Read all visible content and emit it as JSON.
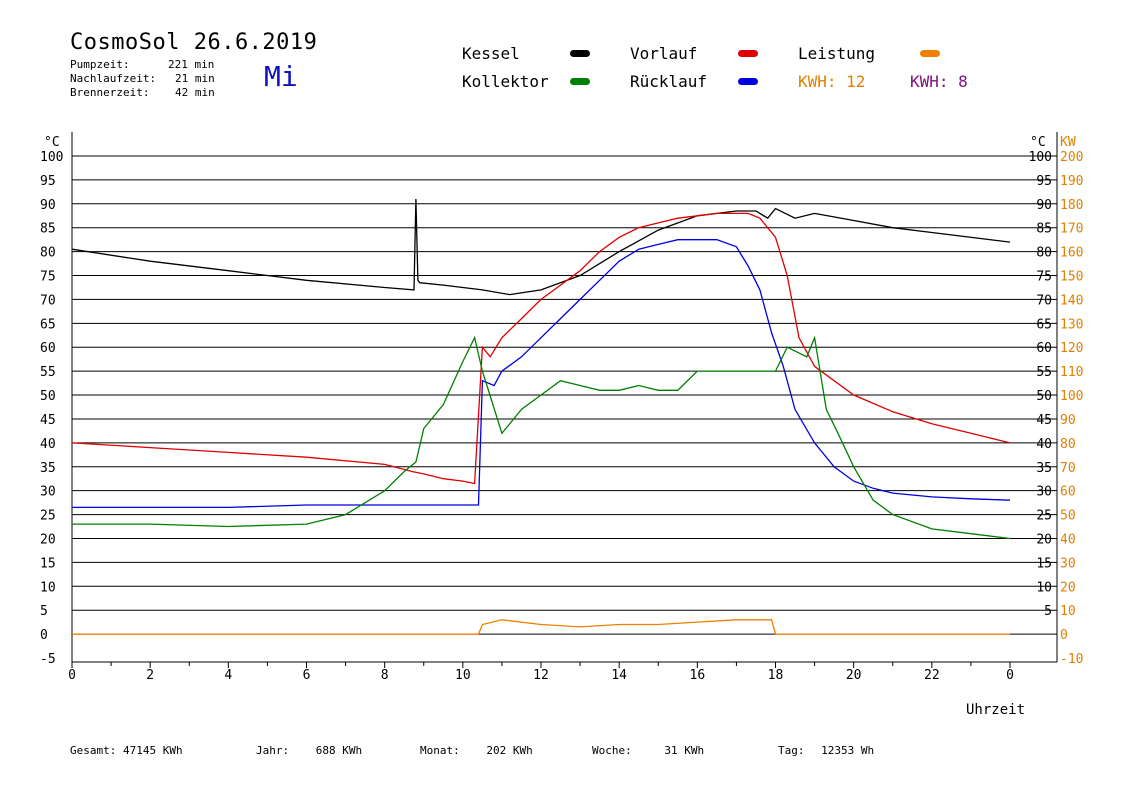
{
  "header": {
    "title": "CosmoSol 26.6.2019",
    "stats": [
      {
        "label": "Pumpzeit:",
        "value": "221 min"
      },
      {
        "label": "Nachlaufzeit:",
        "value": "21 min"
      },
      {
        "label": "Brennerzeit:",
        "value": "42 min"
      }
    ],
    "weekday": "Mi"
  },
  "legend": {
    "items": [
      {
        "label": "Kessel",
        "color": "#000000"
      },
      {
        "label": "Kollektor",
        "color": "#008000"
      },
      {
        "label": "Vorlauf",
        "color": "#e00000"
      },
      {
        "label": "Rücklauf",
        "color": "#0000e0"
      },
      {
        "label": "Leistung",
        "color": "#f08000"
      }
    ],
    "kwh": [
      {
        "label": "KWH:",
        "value": "12",
        "color": "#e08000"
      },
      {
        "label": "KWH:",
        "value": "8",
        "color": "#801080"
      }
    ]
  },
  "footer": [
    {
      "label": "Gesamt:",
      "value": "47145 KWh"
    },
    {
      "label": "Jahr:",
      "value": "688 KWh"
    },
    {
      "label": "Monat:",
      "value": "202 KWh"
    },
    {
      "label": "Woche:",
      "value": "31 KWh"
    },
    {
      "label": "Tag:",
      "value": "12353 Wh"
    }
  ],
  "chart_data": {
    "type": "line",
    "xlabel": "Uhrzeit",
    "ylabel_left": "°C",
    "ylabel_right_temp": "°C",
    "ylabel_right_power": "KW",
    "xlim": [
      0,
      24
    ],
    "ylim": [
      -5,
      100
    ],
    "y2lim": [
      -10,
      200
    ],
    "x_ticks": [
      "0",
      "2",
      "4",
      "6",
      "8",
      "10",
      "12",
      "14",
      "16",
      "18",
      "20",
      "22",
      "0"
    ],
    "y_ticks": [
      100,
      95,
      90,
      85,
      80,
      75,
      70,
      65,
      60,
      55,
      50,
      45,
      40,
      35,
      30,
      25,
      20,
      15,
      10,
      5,
      0,
      -5
    ],
    "y_ticks_right_temp": [
      100,
      95,
      90,
      85,
      80,
      75,
      70,
      65,
      60,
      55,
      50,
      45,
      40,
      35,
      30,
      25,
      20,
      15,
      10,
      5
    ],
    "y_ticks_right_power": [
      200,
      190,
      180,
      170,
      160,
      150,
      140,
      130,
      120,
      110,
      100,
      90,
      80,
      70,
      60,
      50,
      40,
      30,
      20,
      10,
      0,
      -10
    ],
    "grid": true,
    "series": [
      {
        "name": "Kessel",
        "color": "#000000",
        "x": [
          0,
          2,
          4,
          6,
          8,
          8.75,
          8.8,
          8.85,
          8.9,
          9.5,
          10.5,
          11.2,
          12,
          13,
          14,
          15,
          16,
          17,
          17.5,
          17.8,
          18,
          18.5,
          19,
          20,
          21,
          22,
          24
        ],
        "y": [
          80.5,
          78,
          76,
          74,
          72.5,
          72,
          91,
          74,
          73.5,
          73,
          72,
          71,
          72,
          75,
          80,
          84.5,
          87.5,
          88.5,
          88.5,
          87,
          89,
          87,
          88,
          86.5,
          85,
          84,
          82
        ]
      },
      {
        "name": "Vorlauf",
        "color": "#e00000",
        "x": [
          0,
          2,
          4,
          6,
          8,
          8.7,
          9,
          9.5,
          10,
          10.3,
          10.5,
          10.7,
          11,
          11.5,
          12,
          12.5,
          13,
          13.5,
          14,
          14.5,
          15,
          15.5,
          16,
          16.5,
          17,
          17.3,
          17.6,
          18,
          18.3,
          18.6,
          19,
          19.5,
          20,
          21,
          22,
          23,
          24
        ],
        "y": [
          40,
          39,
          38,
          37,
          35.5,
          34,
          33.5,
          32.5,
          32,
          31.5,
          60,
          58,
          62,
          66,
          70,
          73,
          76,
          80,
          83,
          85,
          86,
          87,
          87.5,
          88,
          88,
          88,
          87,
          83,
          75,
          62,
          56,
          53,
          50,
          46.5,
          44,
          42,
          40
        ]
      },
      {
        "name": "Rücklauf",
        "color": "#0000e0",
        "x": [
          0,
          2,
          4,
          6,
          8,
          9,
          10,
          10.4,
          10.5,
          10.8,
          11,
          11.5,
          12,
          12.5,
          13,
          13.5,
          14,
          14.5,
          15,
          15.5,
          16,
          16.5,
          17,
          17.3,
          17.6,
          17.9,
          18.2,
          18.5,
          19,
          19.5,
          20,
          20.5,
          21,
          22,
          23,
          24
        ],
        "y": [
          26.5,
          26.5,
          26.5,
          27,
          27,
          27,
          27,
          27,
          53,
          52,
          55,
          58,
          62,
          66,
          70,
          74,
          78,
          80.5,
          81.5,
          82.5,
          82.5,
          82.5,
          81,
          77,
          72,
          63,
          56,
          47,
          40,
          35,
          32,
          30.5,
          29.5,
          28.7,
          28.3,
          28
        ]
      },
      {
        "name": "Kollektor",
        "color": "#008000",
        "x": [
          0,
          2,
          4,
          6,
          7,
          8,
          8.5,
          8.8,
          9,
          9.5,
          10,
          10.3,
          10.5,
          11,
          11.5,
          12,
          12.5,
          13,
          13.5,
          14,
          14.5,
          15,
          15.5,
          16,
          16.5,
          17,
          17.5,
          18,
          18.3,
          18.8,
          19,
          19.3,
          19.6,
          20,
          20.5,
          21,
          22,
          23,
          24
        ],
        "y": [
          23,
          23,
          22.5,
          23,
          25,
          30,
          34,
          36,
          43,
          48,
          57,
          62,
          55,
          42,
          47,
          50,
          53,
          52,
          51,
          51,
          52,
          51,
          51,
          55,
          55,
          55,
          55,
          55,
          60,
          58,
          62,
          47,
          42,
          35,
          28,
          25,
          22,
          21,
          20
        ]
      },
      {
        "name": "Leistung",
        "color": "#f08000",
        "x": [
          0,
          10.4,
          10.5,
          11,
          12,
          13,
          14,
          15,
          16,
          17,
          17.9,
          18,
          24
        ],
        "y": [
          0,
          0,
          2,
          3,
          2,
          1.5,
          2,
          2,
          2.5,
          3,
          3,
          0,
          0
        ]
      }
    ]
  }
}
